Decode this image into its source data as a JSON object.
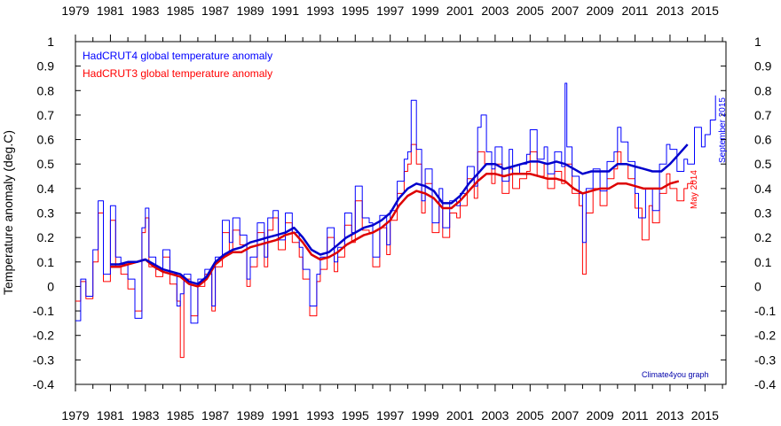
{
  "chart_data": {
    "type": "line",
    "ylabel": "Temperature anomaly (deg.C)",
    "ylim": [
      -0.4,
      1.0
    ],
    "yticks": [
      "1",
      "0.9",
      "0.8",
      "0.7",
      "0.6",
      "0.5",
      "0.4",
      "0.3",
      "0.2",
      "0.1",
      "0",
      "-0.1",
      "-0.2",
      "-0.3",
      "-0.4"
    ],
    "xlim": [
      1979,
      2016.2
    ],
    "xticks": [
      "1979",
      "1981",
      "1983",
      "1985",
      "1987",
      "1989",
      "1991",
      "1993",
      "1995",
      "1997",
      "1999",
      "2001",
      "2003",
      "2005",
      "2007",
      "2009",
      "2011",
      "2013",
      "2015"
    ],
    "grid": false,
    "legend": "top-left",
    "colors": {
      "hadcrut4": "#0000ff",
      "hadcrut3": "#ff0000",
      "hadcrut4_avg": "#0000cc",
      "hadcrut3_avg": "#dd0000"
    },
    "series": [
      {
        "name": "HadCRUT4 global temperature anomaly",
        "kind": "monthly",
        "x": [
          1979.0,
          1979.3,
          1979.6,
          1980.0,
          1980.3,
          1980.6,
          1981.0,
          1981.3,
          1981.6,
          1982.0,
          1982.4,
          1982.8,
          1983.0,
          1983.2,
          1983.6,
          1984.0,
          1984.4,
          1984.8,
          1985.0,
          1985.2,
          1985.6,
          1986.0,
          1986.4,
          1986.8,
          1987.0,
          1987.4,
          1987.8,
          1988.0,
          1988.4,
          1988.8,
          1989.0,
          1989.4,
          1989.8,
          1990.0,
          1990.3,
          1990.6,
          1991.0,
          1991.4,
          1991.8,
          1992.0,
          1992.4,
          1992.8,
          1993.0,
          1993.4,
          1993.8,
          1994.0,
          1994.4,
          1994.8,
          1995.0,
          1995.4,
          1995.8,
          1996.0,
          1996.4,
          1996.8,
          1997.0,
          1997.4,
          1997.8,
          1998.0,
          1998.2,
          1998.5,
          1998.8,
          1999.0,
          1999.4,
          1999.8,
          2000.0,
          2000.4,
          2000.8,
          2001.0,
          2001.4,
          2001.8,
          2002.0,
          2002.2,
          2002.5,
          2002.8,
          2003.0,
          2003.4,
          2003.8,
          2004.0,
          2004.4,
          2004.8,
          2005.0,
          2005.4,
          2005.8,
          2006.0,
          2006.4,
          2006.8,
          2007.0,
          2007.1,
          2007.4,
          2007.8,
          2008.0,
          2008.2,
          2008.6,
          2009.0,
          2009.4,
          2009.8,
          2010.0,
          2010.2,
          2010.6,
          2011.0,
          2011.2,
          2011.6,
          2012.0,
          2012.4,
          2012.8,
          2013.0,
          2013.4,
          2013.8,
          2014.0,
          2014.4,
          2014.8,
          2015.0,
          2015.3,
          2015.6
        ],
        "values": [
          -0.14,
          0.03,
          -0.04,
          0.15,
          0.35,
          0.05,
          0.33,
          0.12,
          0.09,
          0.03,
          -0.13,
          0.24,
          0.32,
          0.12,
          0.07,
          0.15,
          0.05,
          -0.08,
          -0.03,
          0.05,
          -0.15,
          0.03,
          0.07,
          -0.08,
          0.12,
          0.27,
          0.18,
          0.28,
          0.21,
          0.03,
          0.12,
          0.26,
          0.12,
          0.28,
          0.31,
          0.19,
          0.3,
          0.22,
          0.16,
          0.07,
          -0.08,
          0.05,
          0.12,
          0.24,
          0.1,
          0.16,
          0.3,
          0.22,
          0.41,
          0.28,
          0.26,
          0.12,
          0.29,
          0.17,
          0.31,
          0.43,
          0.52,
          0.55,
          0.76,
          0.56,
          0.35,
          0.48,
          0.26,
          0.4,
          0.24,
          0.35,
          0.33,
          0.38,
          0.49,
          0.41,
          0.65,
          0.7,
          0.55,
          0.48,
          0.57,
          0.43,
          0.56,
          0.46,
          0.5,
          0.54,
          0.64,
          0.52,
          0.57,
          0.46,
          0.55,
          0.49,
          0.83,
          0.57,
          0.45,
          0.38,
          0.18,
          0.4,
          0.48,
          0.39,
          0.51,
          0.55,
          0.65,
          0.59,
          0.51,
          0.38,
          0.28,
          0.4,
          0.31,
          0.5,
          0.58,
          0.56,
          0.47,
          0.52,
          0.5,
          0.65,
          0.57,
          0.62,
          0.68,
          0.78
        ]
      },
      {
        "name": "HadCRUT3 global temperature anomaly",
        "kind": "monthly",
        "x": [
          1979.0,
          1979.3,
          1979.6,
          1980.0,
          1980.3,
          1980.6,
          1981.0,
          1981.3,
          1981.6,
          1982.0,
          1982.4,
          1982.8,
          1983.0,
          1983.2,
          1983.6,
          1984.0,
          1984.4,
          1984.8,
          1985.0,
          1985.2,
          1985.6,
          1986.0,
          1986.4,
          1986.8,
          1987.0,
          1987.4,
          1987.8,
          1988.0,
          1988.4,
          1988.8,
          1989.0,
          1989.4,
          1989.8,
          1990.0,
          1990.3,
          1990.6,
          1991.0,
          1991.4,
          1991.8,
          1992.0,
          1992.4,
          1992.8,
          1993.0,
          1993.4,
          1993.8,
          1994.0,
          1994.4,
          1994.8,
          1995.0,
          1995.4,
          1995.8,
          1996.0,
          1996.4,
          1996.8,
          1997.0,
          1997.4,
          1997.8,
          1998.0,
          1998.2,
          1998.5,
          1998.8,
          1999.0,
          1999.4,
          1999.8,
          2000.0,
          2000.4,
          2000.8,
          2001.0,
          2001.4,
          2001.8,
          2002.0,
          2002.4,
          2002.8,
          2003.0,
          2003.4,
          2003.8,
          2004.0,
          2004.4,
          2004.8,
          2005.0,
          2005.4,
          2005.8,
          2006.0,
          2006.4,
          2006.8,
          2007.0,
          2007.4,
          2007.8,
          2008.0,
          2008.2,
          2008.6,
          2009.0,
          2009.4,
          2009.8,
          2010.0,
          2010.2,
          2010.6,
          2011.0,
          2011.4,
          2011.8,
          2012.0,
          2012.4,
          2012.8,
          2013.0,
          2013.4,
          2013.8,
          2014.0,
          2014.3
        ],
        "values": [
          -0.06,
          0.02,
          -0.05,
          0.1,
          0.3,
          0.02,
          0.27,
          0.08,
          0.05,
          -0.01,
          -0.1,
          0.22,
          0.28,
          0.08,
          0.04,
          0.12,
          0.01,
          -0.06,
          -0.29,
          0.03,
          -0.12,
          0.0,
          0.05,
          -0.1,
          0.08,
          0.22,
          0.14,
          0.23,
          0.17,
          0.0,
          0.08,
          0.22,
          0.08,
          0.23,
          0.28,
          0.15,
          0.26,
          0.18,
          0.12,
          0.03,
          -0.12,
          0.02,
          0.07,
          0.2,
          0.06,
          0.12,
          0.25,
          0.18,
          0.35,
          0.23,
          0.22,
          0.08,
          0.24,
          0.13,
          0.27,
          0.38,
          0.47,
          0.5,
          0.58,
          0.5,
          0.3,
          0.42,
          0.22,
          0.35,
          0.2,
          0.3,
          0.28,
          0.33,
          0.44,
          0.36,
          0.55,
          0.5,
          0.42,
          0.5,
          0.38,
          0.48,
          0.4,
          0.44,
          0.47,
          0.55,
          0.45,
          0.5,
          0.4,
          0.47,
          0.42,
          0.5,
          0.38,
          0.33,
          0.05,
          0.3,
          0.4,
          0.33,
          0.44,
          0.48,
          0.55,
          0.5,
          0.44,
          0.32,
          0.19,
          0.33,
          0.26,
          0.38,
          0.46,
          0.4,
          0.35,
          0.4,
          0.42,
          0.43
        ]
      },
      {
        "name": "HadCRUT4 running mean",
        "kind": "smooth",
        "x": [
          1981.0,
          1981.5,
          1982.0,
          1982.5,
          1983.0,
          1983.5,
          1984.0,
          1984.5,
          1985.0,
          1985.5,
          1986.0,
          1986.5,
          1987.0,
          1987.5,
          1988.0,
          1988.5,
          1989.0,
          1989.5,
          1990.0,
          1990.5,
          1991.0,
          1991.5,
          1992.0,
          1992.5,
          1993.0,
          1993.5,
          1994.0,
          1994.5,
          1995.0,
          1995.5,
          1996.0,
          1996.5,
          1997.0,
          1997.5,
          1998.0,
          1998.5,
          1999.0,
          1999.5,
          2000.0,
          2000.5,
          2001.0,
          2001.5,
          2002.0,
          2002.5,
          2003.0,
          2003.5,
          2004.0,
          2004.5,
          2005.0,
          2005.5,
          2006.0,
          2006.5,
          2007.0,
          2007.5,
          2008.0,
          2008.5,
          2009.0,
          2009.5,
          2010.0,
          2010.5,
          2011.0,
          2011.5,
          2012.0,
          2012.5,
          2013.0,
          2013.5,
          2014.0
        ],
        "values": [
          0.09,
          0.09,
          0.1,
          0.1,
          0.11,
          0.09,
          0.07,
          0.06,
          0.05,
          0.02,
          0.01,
          0.04,
          0.1,
          0.13,
          0.15,
          0.16,
          0.18,
          0.19,
          0.2,
          0.21,
          0.22,
          0.24,
          0.2,
          0.15,
          0.13,
          0.14,
          0.17,
          0.2,
          0.22,
          0.24,
          0.25,
          0.27,
          0.3,
          0.36,
          0.4,
          0.42,
          0.41,
          0.39,
          0.34,
          0.34,
          0.37,
          0.42,
          0.46,
          0.5,
          0.5,
          0.48,
          0.49,
          0.5,
          0.51,
          0.51,
          0.5,
          0.51,
          0.5,
          0.48,
          0.46,
          0.47,
          0.47,
          0.47,
          0.5,
          0.5,
          0.49,
          0.48,
          0.47,
          0.47,
          0.5,
          0.54,
          0.58
        ]
      },
      {
        "name": "HadCRUT3 running mean",
        "kind": "smooth",
        "x": [
          1981.0,
          1981.5,
          1982.0,
          1982.5,
          1983.0,
          1983.5,
          1984.0,
          1984.5,
          1985.0,
          1985.5,
          1986.0,
          1986.5,
          1987.0,
          1987.5,
          1988.0,
          1988.5,
          1989.0,
          1989.5,
          1990.0,
          1990.5,
          1991.0,
          1991.5,
          1992.0,
          1992.5,
          1993.0,
          1993.5,
          1994.0,
          1994.5,
          1995.0,
          1995.5,
          1996.0,
          1996.5,
          1997.0,
          1997.5,
          1998.0,
          1998.5,
          1999.0,
          1999.5,
          2000.0,
          2000.5,
          2001.0,
          2001.5,
          2002.0,
          2002.5,
          2003.0,
          2003.5,
          2004.0,
          2004.5,
          2005.0,
          2005.5,
          2006.0,
          2006.5,
          2007.0,
          2007.5,
          2008.0,
          2008.5,
          2009.0,
          2009.5,
          2010.0,
          2010.5,
          2011.0,
          2011.5,
          2012.0,
          2012.5,
          2013.0,
          2013.5
        ],
        "values": [
          0.08,
          0.08,
          0.09,
          0.1,
          0.11,
          0.08,
          0.06,
          0.05,
          0.04,
          0.01,
          0.0,
          0.03,
          0.09,
          0.12,
          0.14,
          0.14,
          0.16,
          0.17,
          0.18,
          0.19,
          0.21,
          0.22,
          0.18,
          0.13,
          0.11,
          0.12,
          0.14,
          0.17,
          0.19,
          0.21,
          0.22,
          0.24,
          0.27,
          0.33,
          0.37,
          0.39,
          0.38,
          0.36,
          0.32,
          0.32,
          0.35,
          0.39,
          0.43,
          0.46,
          0.46,
          0.45,
          0.46,
          0.46,
          0.46,
          0.45,
          0.44,
          0.44,
          0.43,
          0.4,
          0.38,
          0.39,
          0.4,
          0.4,
          0.42,
          0.42,
          0.41,
          0.4,
          0.4,
          0.4,
          0.42,
          0.43
        ]
      }
    ],
    "annotations": {
      "legend_hadcrut4": "HadCRUT4 global temperature anomaly",
      "legend_hadcrut3": "HadCRUT3 global temperature anomaly",
      "note_september": "September 2015",
      "note_may": "May 2014",
      "credit": "Climate4you graph"
    }
  }
}
